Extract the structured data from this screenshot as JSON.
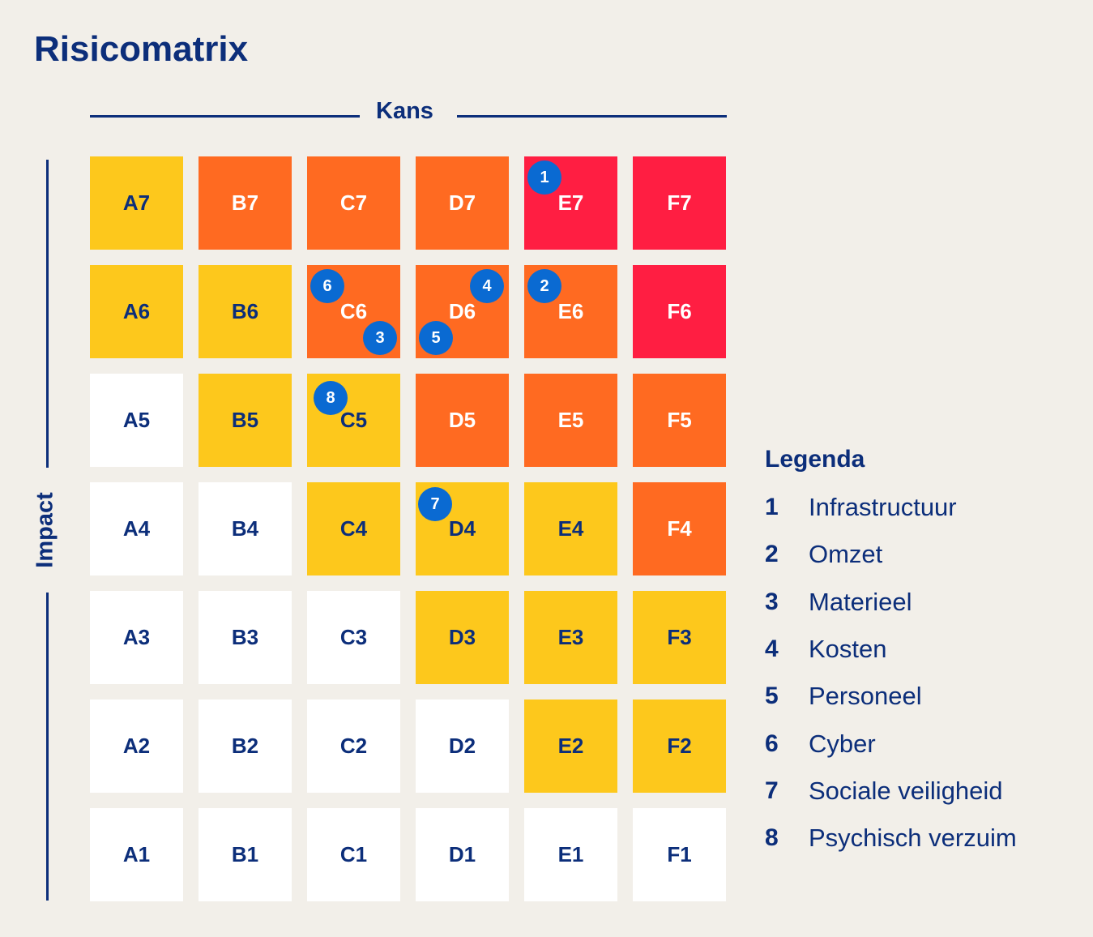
{
  "title": "Risicomatrix",
  "x_axis_label": "Kans",
  "y_axis_label": "Impact",
  "colors": {
    "white": "#ffffff",
    "yellow": "#fdc81c",
    "orange": "#ff6a21",
    "red": "#ff1e42",
    "marker": "#0a6ad2",
    "text": "#0c2e7a",
    "background": "#f2efe9"
  },
  "matrix": {
    "columns": [
      "A",
      "B",
      "C",
      "D",
      "E",
      "F"
    ],
    "rows": [
      {
        "impact": 7,
        "cells": [
          {
            "label": "A7",
            "level": "yellow"
          },
          {
            "label": "B7",
            "level": "orange"
          },
          {
            "label": "C7",
            "level": "orange"
          },
          {
            "label": "D7",
            "level": "orange"
          },
          {
            "label": "E7",
            "level": "red"
          },
          {
            "label": "F7",
            "level": "red"
          }
        ]
      },
      {
        "impact": 6,
        "cells": [
          {
            "label": "A6",
            "level": "yellow"
          },
          {
            "label": "B6",
            "level": "yellow"
          },
          {
            "label": "C6",
            "level": "orange"
          },
          {
            "label": "D6",
            "level": "orange"
          },
          {
            "label": "E6",
            "level": "orange"
          },
          {
            "label": "F6",
            "level": "red"
          }
        ]
      },
      {
        "impact": 5,
        "cells": [
          {
            "label": "A5",
            "level": "white"
          },
          {
            "label": "B5",
            "level": "yellow"
          },
          {
            "label": "C5",
            "level": "yellow"
          },
          {
            "label": "D5",
            "level": "orange"
          },
          {
            "label": "E5",
            "level": "orange"
          },
          {
            "label": "F5",
            "level": "orange"
          }
        ]
      },
      {
        "impact": 4,
        "cells": [
          {
            "label": "A4",
            "level": "white"
          },
          {
            "label": "B4",
            "level": "white"
          },
          {
            "label": "C4",
            "level": "yellow"
          },
          {
            "label": "D4",
            "level": "yellow"
          },
          {
            "label": "E4",
            "level": "yellow"
          },
          {
            "label": "F4",
            "level": "orange"
          }
        ]
      },
      {
        "impact": 3,
        "cells": [
          {
            "label": "A3",
            "level": "white"
          },
          {
            "label": "B3",
            "level": "white"
          },
          {
            "label": "C3",
            "level": "white"
          },
          {
            "label": "D3",
            "level": "yellow"
          },
          {
            "label": "E3",
            "level": "yellow"
          },
          {
            "label": "F3",
            "level": "yellow"
          }
        ]
      },
      {
        "impact": 2,
        "cells": [
          {
            "label": "A2",
            "level": "white"
          },
          {
            "label": "B2",
            "level": "white"
          },
          {
            "label": "C2",
            "level": "white"
          },
          {
            "label": "D2",
            "level": "white"
          },
          {
            "label": "E2",
            "level": "yellow"
          },
          {
            "label": "F2",
            "level": "yellow"
          }
        ]
      },
      {
        "impact": 1,
        "cells": [
          {
            "label": "A1",
            "level": "white"
          },
          {
            "label": "B1",
            "level": "white"
          },
          {
            "label": "C1",
            "level": "white"
          },
          {
            "label": "D1",
            "level": "white"
          },
          {
            "label": "E1",
            "level": "white"
          },
          {
            "label": "F1",
            "level": "white"
          }
        ]
      }
    ]
  },
  "risks": [
    {
      "number": "1",
      "cell": "E7"
    },
    {
      "number": "2",
      "cell": "E6"
    },
    {
      "number": "3",
      "cell": "C6"
    },
    {
      "number": "4",
      "cell": "D6"
    },
    {
      "number": "5",
      "cell": "D6"
    },
    {
      "number": "6",
      "cell": "C6"
    },
    {
      "number": "7",
      "cell": "D4"
    },
    {
      "number": "8",
      "cell": "C5"
    }
  ],
  "legend": {
    "title": "Legenda",
    "items": [
      {
        "number": "1",
        "label": "Infrastructuur"
      },
      {
        "number": "2",
        "label": "Omzet"
      },
      {
        "number": "3",
        "label": "Materieel"
      },
      {
        "number": "4",
        "label": "Kosten"
      },
      {
        "number": "5",
        "label": "Personeel"
      },
      {
        "number": "6",
        "label": "Cyber"
      },
      {
        "number": "7",
        "label": "Sociale veiligheid"
      },
      {
        "number": "8",
        "label": "Psychisch verzuim"
      }
    ]
  }
}
